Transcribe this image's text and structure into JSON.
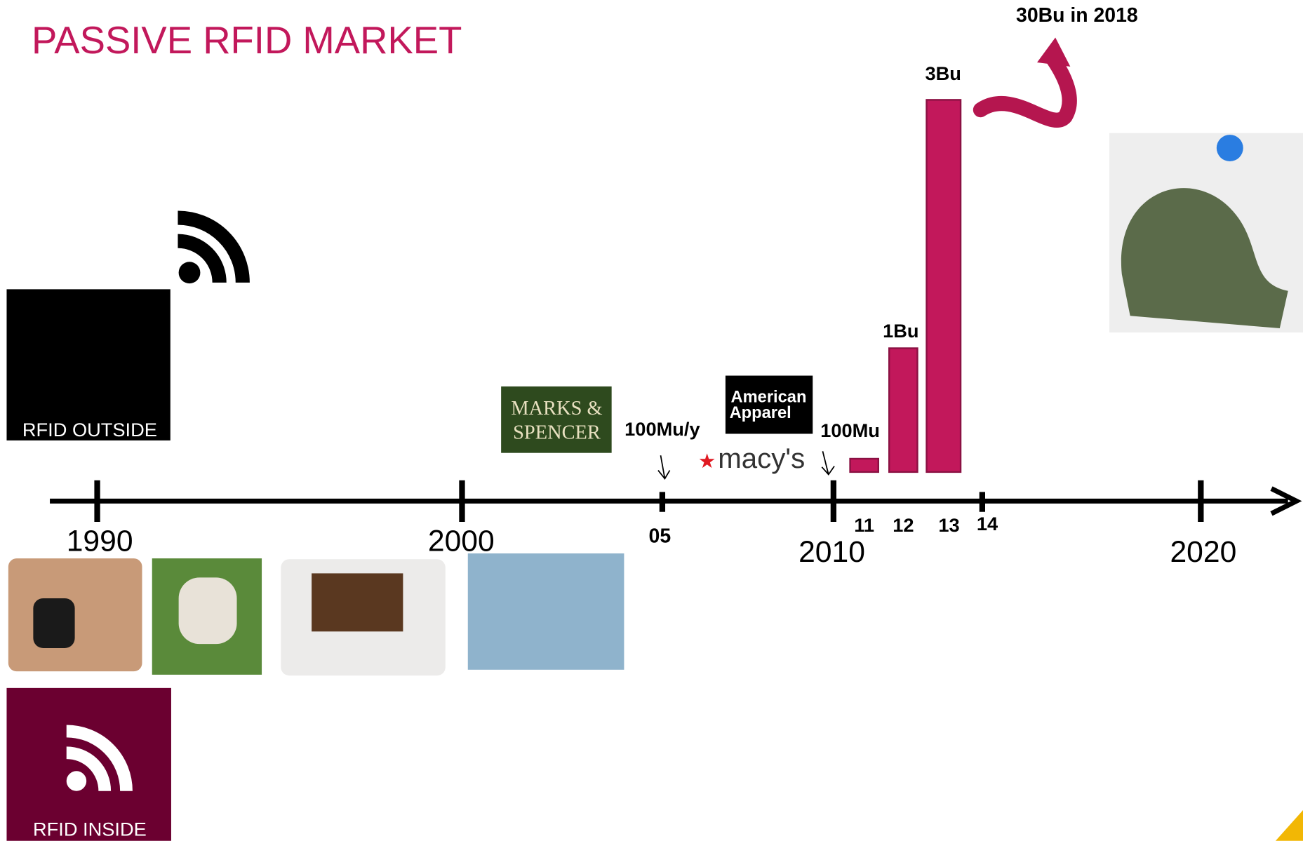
{
  "title": "PASSIVE RFID MARKET",
  "annotation": "30Bu in 2018",
  "bar_labels": [
    "100Mu",
    "1Bu",
    "3Bu"
  ],
  "timeline": {
    "years": [
      "1990",
      "2000",
      "2010",
      "2020"
    ],
    "minor": [
      "05",
      "11",
      "12",
      "13",
      "14"
    ],
    "note": "100Mu/y"
  },
  "badges": [
    "RFID OUTSIDE",
    "RFID INSIDE"
  ],
  "logos": {
    "marks_spencer": [
      "MARKS &",
      "SPENCER"
    ],
    "american_apparel": [
      "American",
      "Apparel"
    ],
    "macys": "macy's"
  }
}
